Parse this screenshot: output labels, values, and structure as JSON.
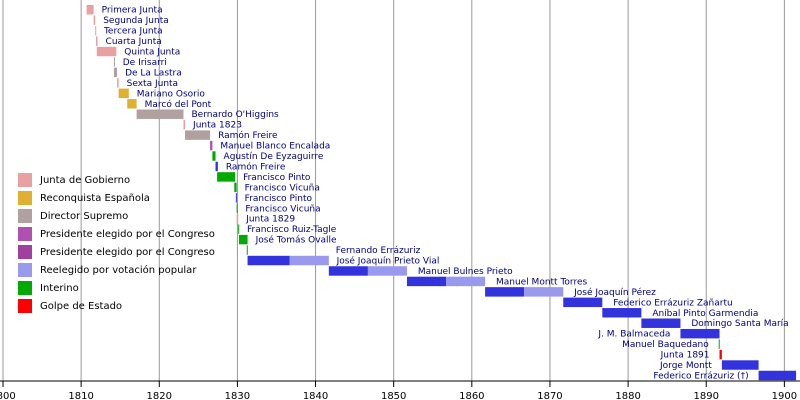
{
  "chart_data": {
    "type": "timeline",
    "xlim": [
      1800,
      1902
    ],
    "xticks": [
      1800,
      1810,
      1820,
      1830,
      1840,
      1850,
      1860,
      1870,
      1880,
      1890,
      1900
    ],
    "grid": true,
    "legend": [
      {
        "name": "Junta de Gobierno",
        "color": "#e8a0a0"
      },
      {
        "name": "Reconquista Española",
        "color": "#e0b030"
      },
      {
        "name": "Director Supremo",
        "color": "#b0a0a0"
      },
      {
        "name": "Presidente elegido por el Congreso",
        "color": "#b050b0"
      },
      {
        "name": "Presidente elegido por el Congreso",
        "color": "#a040a0"
      },
      {
        "name": "Reelegido por votación popular",
        "color": "#9999ee"
      },
      {
        "name": "Interino",
        "color": "#00aa00"
      },
      {
        "name": "Golpe de Estado",
        "color": "#ff0000"
      }
    ],
    "rows": [
      {
        "name": "Primera Junta",
        "segments": [
          {
            "start": 1810.7,
            "end": 1811.6,
            "color": "#e8a0a0"
          }
        ]
      },
      {
        "name": "Segunda Junta",
        "segments": [
          {
            "start": 1811.6,
            "end": 1811.8,
            "color": "#e8a0a0"
          }
        ]
      },
      {
        "name": "Tercera Junta",
        "segments": [
          {
            "start": 1811.8,
            "end": 1811.9,
            "color": "#e8a0a0"
          }
        ]
      },
      {
        "name": "Cuarta Junta",
        "segments": [
          {
            "start": 1811.9,
            "end": 1812.1,
            "color": "#e8a0a0"
          }
        ]
      },
      {
        "name": "Quinta Junta",
        "segments": [
          {
            "start": 1812.0,
            "end": 1814.5,
            "color": "#e8a0a0"
          }
        ]
      },
      {
        "name": "De Irisarri",
        "segments": [
          {
            "start": 1814.2,
            "end": 1814.3,
            "color": "#b0a0a0"
          }
        ]
      },
      {
        "name": "De La Lastra",
        "segments": [
          {
            "start": 1814.2,
            "end": 1814.6,
            "color": "#b0a0a0"
          }
        ]
      },
      {
        "name": "Sexta Junta",
        "segments": [
          {
            "start": 1814.6,
            "end": 1814.8,
            "color": "#e8a0a0"
          }
        ]
      },
      {
        "name": "Mariano Osorio",
        "segments": [
          {
            "start": 1814.8,
            "end": 1816.1,
            "color": "#e0b030"
          }
        ]
      },
      {
        "name": "Marcó del Pont",
        "segments": [
          {
            "start": 1815.9,
            "end": 1817.1,
            "color": "#e0b030"
          }
        ]
      },
      {
        "name": "Bernardo O'Higgins",
        "segments": [
          {
            "start": 1817.1,
            "end": 1823.1,
            "color": "#b0a0a0"
          }
        ]
      },
      {
        "name": "Junta 1823",
        "segments": [
          {
            "start": 1823.1,
            "end": 1823.3,
            "color": "#e8a0a0"
          }
        ]
      },
      {
        "name": "Ramón Freire",
        "segments": [
          {
            "start": 1823.3,
            "end": 1826.5,
            "color": "#b0a0a0"
          }
        ]
      },
      {
        "name": "Manuel Blanco Encalada",
        "segments": [
          {
            "start": 1826.5,
            "end": 1826.8,
            "color": "#b050b0"
          }
        ]
      },
      {
        "name": "Agustín De Eyzaguirre",
        "segments": [
          {
            "start": 1826.8,
            "end": 1827.2,
            "color": "#00aa00"
          }
        ]
      },
      {
        "name": "Ramón Freire",
        "segments": [
          {
            "start": 1827.2,
            "end": 1827.5,
            "color": "#3333dd"
          }
        ]
      },
      {
        "name": "Francisco Pinto",
        "segments": [
          {
            "start": 1827.4,
            "end": 1829.7,
            "color": "#00aa00"
          }
        ]
      },
      {
        "name": "Francisco Vicuña",
        "segments": [
          {
            "start": 1829.6,
            "end": 1829.9,
            "color": "#00aa00"
          }
        ]
      },
      {
        "name": "Francisco Pinto",
        "segments": [
          {
            "start": 1829.8,
            "end": 1829.9,
            "color": "#3333dd"
          }
        ]
      },
      {
        "name": "Francisco Vicuña",
        "segments": [
          {
            "start": 1829.9,
            "end": 1830.0,
            "color": "#00aa00"
          }
        ]
      },
      {
        "name": "Junta 1829",
        "segments": [
          {
            "start": 1829.9,
            "end": 1830.1,
            "color": "#e8a0a0"
          }
        ]
      },
      {
        "name": "Francisco Ruiz-Tagle",
        "segments": [
          {
            "start": 1830.1,
            "end": 1830.2,
            "color": "#00aa00"
          }
        ]
      },
      {
        "name": "José Tomás Ovalle",
        "segments": [
          {
            "start": 1830.2,
            "end": 1831.3,
            "color": "#00aa00"
          }
        ]
      },
      {
        "name": "Fernando Errázuriz",
        "segments": [
          {
            "start": 1831.2,
            "end": 1831.3,
            "color": "#00aa00"
          }
        ]
      },
      {
        "name": "José Joaquín Prieto Vial",
        "segments": [
          {
            "start": 1831.3,
            "end": 1836.7,
            "color": "#3333dd"
          },
          {
            "start": 1836.7,
            "end": 1841.7,
            "color": "#9999ee"
          }
        ]
      },
      {
        "name": "Manuel Bulnes Prieto",
        "segments": [
          {
            "start": 1841.7,
            "end": 1846.7,
            "color": "#3333dd"
          },
          {
            "start": 1846.7,
            "end": 1851.7,
            "color": "#9999ee"
          }
        ]
      },
      {
        "name": "Manuel Montt Torres",
        "segments": [
          {
            "start": 1851.7,
            "end": 1856.7,
            "color": "#3333dd"
          },
          {
            "start": 1856.7,
            "end": 1861.7,
            "color": "#9999ee"
          }
        ]
      },
      {
        "name": "José Joaquín Pérez",
        "segments": [
          {
            "start": 1861.7,
            "end": 1866.7,
            "color": "#3333dd"
          },
          {
            "start": 1866.7,
            "end": 1871.7,
            "color": "#9999ee"
          }
        ]
      },
      {
        "name": "Federico Errázuriz Zañartu",
        "segments": [
          {
            "start": 1871.7,
            "end": 1876.7,
            "color": "#3333dd"
          }
        ]
      },
      {
        "name": "Aníbal Pinto Garmendia",
        "segments": [
          {
            "start": 1876.7,
            "end": 1881.7,
            "color": "#3333dd"
          }
        ]
      },
      {
        "name": "Domingo Santa María",
        "segments": [
          {
            "start": 1881.7,
            "end": 1886.7,
            "color": "#3333dd"
          }
        ]
      },
      {
        "name": "J. M. Balmaceda",
        "segments": [
          {
            "start": 1886.7,
            "end": 1891.7,
            "color": "#3333dd"
          }
        ]
      },
      {
        "name": "Manuel Baquedano",
        "segments": [
          {
            "start": 1891.6,
            "end": 1891.7,
            "color": "#00aa00"
          }
        ]
      },
      {
        "name": "Junta 1891",
        "segments": [
          {
            "start": 1891.7,
            "end": 1892.0,
            "color": "#ff0000"
          }
        ]
      },
      {
        "name": "Jorge Montt",
        "segments": [
          {
            "start": 1892.0,
            "end": 1896.7,
            "color": "#3333dd"
          }
        ]
      },
      {
        "name": "Federico Errázuriz (†)",
        "segments": [
          {
            "start": 1896.7,
            "end": 1901.5,
            "color": "#3333dd"
          }
        ]
      }
    ]
  }
}
